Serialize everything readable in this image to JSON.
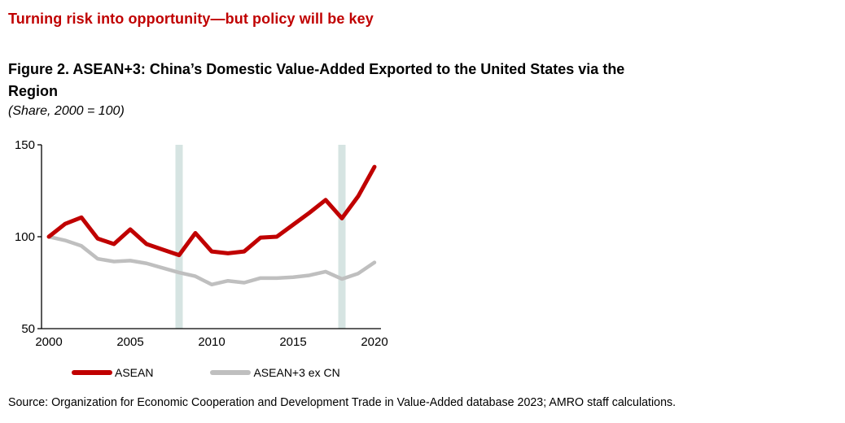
{
  "header": {
    "text": "Turning risk into opportunity—but policy will be key"
  },
  "figure": {
    "title_line1": "Figure 2. ASEAN+3: China’s Domestic Value-Added Exported to the United States via the",
    "title_line2": "Region",
    "subtitle": "(Share, 2000 = 100)"
  },
  "source": {
    "text": "Source: Organization for Economic Cooperation and Development Trade in Value-Added database 2023; AMRO staff calculations."
  },
  "colors": {
    "accent_red": "#C00000",
    "series_gray": "#BFBFBF",
    "band": "#D6E4E2",
    "axis": "#000000"
  },
  "chart_data": {
    "type": "line",
    "title": "ASEAN+3: China’s Domestic Value-Added Exported to the United States via the Region",
    "subtitle": "(Share, 2000 = 100)",
    "xlabel": "",
    "ylabel": "",
    "x": [
      2000,
      2001,
      2002,
      2003,
      2004,
      2005,
      2006,
      2007,
      2008,
      2009,
      2010,
      2011,
      2012,
      2013,
      2014,
      2015,
      2016,
      2017,
      2018,
      2019,
      2020
    ],
    "series": [
      {
        "name": "ASEAN",
        "color": "#C00000",
        "values": [
          100,
          107,
          110.5,
          99,
          96,
          104,
          96,
          93,
          90,
          102,
          92,
          91,
          92,
          99.5,
          100,
          106.5,
          113,
          120,
          110,
          122,
          138
        ]
      },
      {
        "name": "ASEAN+3 ex CN",
        "color": "#BFBFBF",
        "values": [
          100,
          98,
          95,
          88,
          86.5,
          87,
          85.5,
          83,
          80.5,
          78.5,
          74,
          76,
          75,
          77.5,
          77.5,
          78,
          79,
          81,
          77,
          80,
          86
        ]
      }
    ],
    "xticks": [
      2000,
      2005,
      2010,
      2015,
      2020
    ],
    "yticks": [
      150,
      100,
      50
    ],
    "ylim": [
      50,
      150
    ],
    "xlim": [
      2000,
      2020
    ],
    "highlight_bands_years": [
      2008,
      2018
    ],
    "grid": false,
    "legend_position": "bottom"
  }
}
